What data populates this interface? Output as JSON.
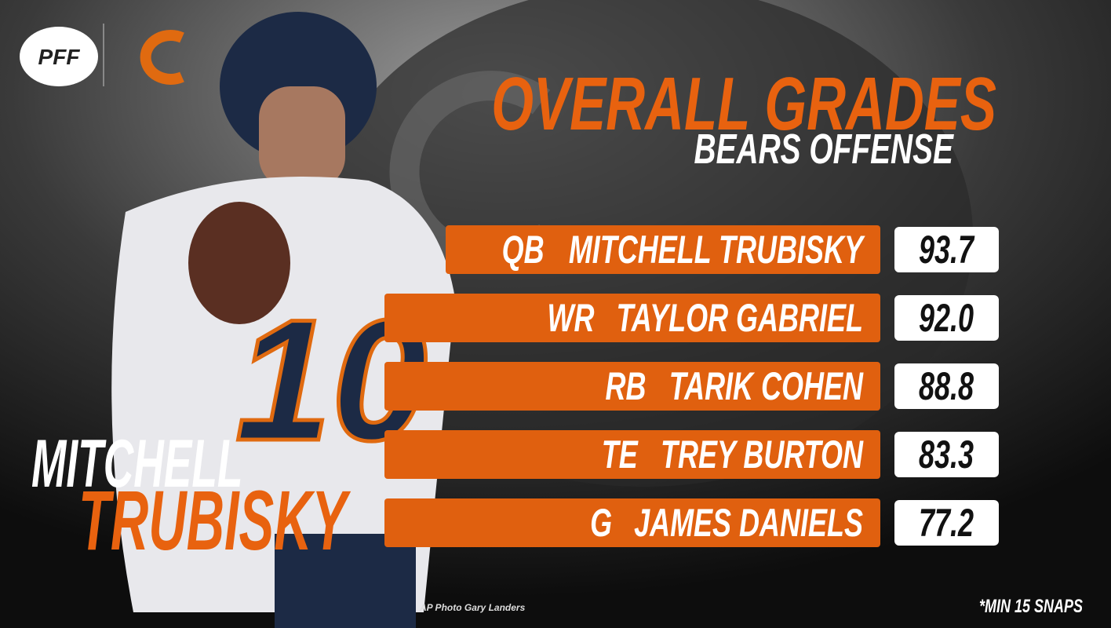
{
  "header": {
    "logo": "PFF",
    "title": "OVERALL GRADES",
    "subtitle": "BEARS OFFENSE"
  },
  "player": {
    "first_name": "MITCHELL",
    "last_name": "TRUBISKY"
  },
  "rows": [
    {
      "position": "QB",
      "name": "MITCHELL TRUBISKY",
      "grade": "93.7"
    },
    {
      "position": "WR",
      "name": "TAYLOR GABRIEL",
      "grade": "92.0"
    },
    {
      "position": "RB",
      "name": "TARIK COHEN",
      "grade": "88.8"
    },
    {
      "position": "TE",
      "name": "TREY BURTON",
      "grade": "83.3"
    },
    {
      "position": "G",
      "name": "JAMES DANIELS",
      "grade": "77.2"
    }
  ],
  "credit": "AP Photo Gary Landers",
  "footnote": "*MIN 15 SNAPS"
}
